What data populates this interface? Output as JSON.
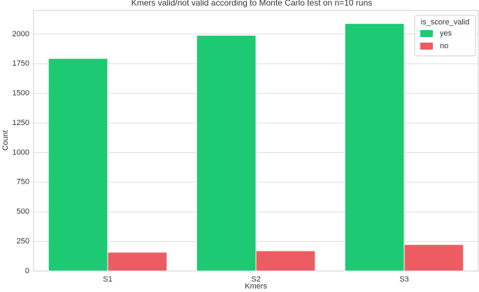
{
  "chart_data": {
    "type": "bar",
    "title": "Kmers valid/not valid according to Monte Carlo test on n=10 runs",
    "x_label": "Kmers",
    "y_label": "Count",
    "categories": [
      "S1",
      "S2",
      "S3"
    ],
    "series": [
      {
        "name": "yes",
        "color": "#1ec974",
        "values": [
          1795,
          1990,
          2090
        ]
      },
      {
        "name": "no",
        "color": "#eb5d62",
        "values": [
          159,
          171,
          224
        ]
      }
    ],
    "legend_title": "is_score_valid",
    "legend_position": "upper right",
    "ylim": [
      0,
      2200
    ],
    "yticks": [
      0,
      250,
      500,
      750,
      1000,
      1250,
      1500,
      1750,
      2000
    ],
    "grid": true
  }
}
